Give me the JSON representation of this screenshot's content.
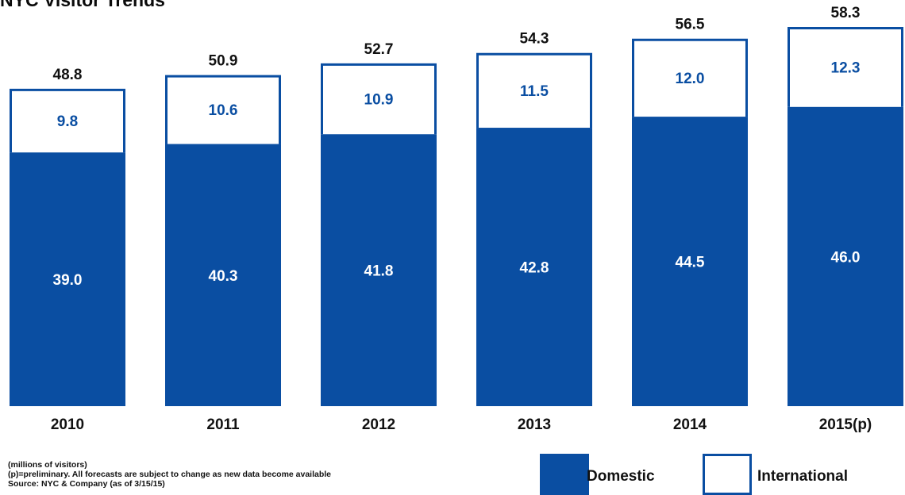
{
  "chart_data": {
    "type": "bar",
    "stacked": true,
    "title": "NYC Visitor Trends",
    "categories": [
      "2010",
      "2011",
      "2012",
      "2013",
      "2014",
      "2015(p)"
    ],
    "series": [
      {
        "name": "Domestic",
        "values": [
          39.0,
          40.3,
          41.8,
          42.8,
          44.5,
          46.0
        ],
        "color": "#0a4ea2"
      },
      {
        "name": "International",
        "values": [
          9.8,
          10.6,
          10.9,
          11.5,
          12.0,
          12.3
        ],
        "color": "#ffffff",
        "stroke": "#0a4ea2"
      }
    ],
    "totals": [
      "48.8",
      "50.9",
      "52.7",
      "54.3",
      "56.5",
      "58.3"
    ],
    "domestic_labels": [
      "39.0",
      "40.3",
      "41.8",
      "42.8",
      "44.5",
      "46.0"
    ],
    "international_labels": [
      "9.8",
      "10.6",
      "10.9",
      "11.5",
      "12.0",
      "12.3"
    ],
    "legend": {
      "domestic": "Domestic",
      "international": "International",
      "position": "bottom-right"
    },
    "notes": [
      "(millions of visitors)",
      "(p)=preliminary. All forecasts are subject to change as new data become available",
      "Source: NYC & Company (as of 3/15/15)"
    ],
    "colors": {
      "primary": "#0a4ea2",
      "domestic_text": "#ffffff",
      "international_text": "#0a4ea2",
      "label_text": "#111111"
    }
  }
}
